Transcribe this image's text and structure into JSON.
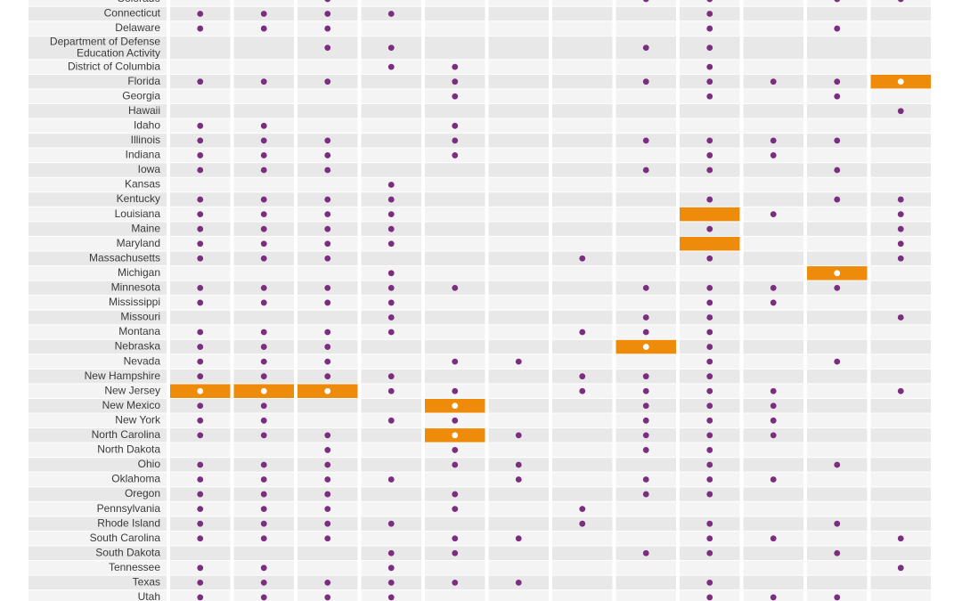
{
  "rows": [
    {
      "label": "Colorado",
      "cells": [
        0,
        0,
        1,
        0,
        0,
        0,
        0,
        1,
        1,
        0,
        1,
        1
      ]
    },
    {
      "label": "Connecticut",
      "cells": [
        1,
        1,
        1,
        1,
        0,
        0,
        0,
        0,
        1,
        0,
        0,
        0
      ]
    },
    {
      "label": "Delaware",
      "cells": [
        1,
        1,
        1,
        0,
        0,
        0,
        0,
        0,
        1,
        0,
        1,
        0
      ]
    },
    {
      "label": [
        "Department of Defense",
        "Education Activity"
      ],
      "cells": [
        0,
        0,
        1,
        1,
        0,
        0,
        0,
        1,
        1,
        0,
        0,
        0
      ]
    },
    {
      "label": "District of Columbia",
      "cells": [
        0,
        0,
        0,
        1,
        1,
        0,
        0,
        0,
        1,
        0,
        0,
        0
      ]
    },
    {
      "label": "Florida",
      "cells": [
        1,
        1,
        1,
        0,
        1,
        0,
        0,
        1,
        1,
        1,
        1,
        2
      ]
    },
    {
      "label": "Georgia",
      "cells": [
        0,
        0,
        0,
        0,
        1,
        0,
        0,
        0,
        1,
        0,
        1,
        0
      ]
    },
    {
      "label": "Hawaii",
      "cells": [
        0,
        0,
        0,
        0,
        0,
        0,
        0,
        0,
        0,
        0,
        0,
        1
      ]
    },
    {
      "label": "Idaho",
      "cells": [
        1,
        1,
        0,
        0,
        1,
        0,
        0,
        0,
        0,
        0,
        0,
        0
      ]
    },
    {
      "label": "Illinois",
      "cells": [
        1,
        1,
        1,
        0,
        1,
        0,
        0,
        1,
        1,
        1,
        1,
        0
      ]
    },
    {
      "label": "Indiana",
      "cells": [
        1,
        1,
        1,
        0,
        1,
        0,
        0,
        0,
        1,
        1,
        0,
        0
      ]
    },
    {
      "label": "Iowa",
      "cells": [
        1,
        1,
        1,
        0,
        0,
        0,
        0,
        1,
        1,
        0,
        1,
        0
      ]
    },
    {
      "label": "Kansas",
      "cells": [
        0,
        0,
        0,
        1,
        0,
        0,
        0,
        0,
        0,
        0,
        0,
        0
      ]
    },
    {
      "label": "Kentucky",
      "cells": [
        1,
        1,
        1,
        1,
        0,
        0,
        0,
        0,
        1,
        0,
        1,
        1
      ]
    },
    {
      "label": "Louisiana",
      "cells": [
        1,
        1,
        1,
        1,
        0,
        0,
        0,
        0,
        3,
        1,
        0,
        1
      ]
    },
    {
      "label": "Maine",
      "cells": [
        1,
        1,
        1,
        1,
        0,
        0,
        0,
        0,
        1,
        0,
        0,
        1
      ]
    },
    {
      "label": "Maryland",
      "cells": [
        1,
        1,
        1,
        1,
        0,
        0,
        0,
        0,
        3,
        0,
        0,
        1
      ]
    },
    {
      "label": "Massachusetts",
      "cells": [
        1,
        1,
        1,
        0,
        0,
        0,
        1,
        0,
        1,
        0,
        0,
        1
      ]
    },
    {
      "label": "Michigan",
      "cells": [
        0,
        0,
        0,
        1,
        0,
        0,
        0,
        0,
        0,
        0,
        2,
        0
      ]
    },
    {
      "label": "Minnesota",
      "cells": [
        1,
        1,
        1,
        1,
        1,
        0,
        0,
        1,
        1,
        1,
        1,
        0
      ]
    },
    {
      "label": "Mississippi",
      "cells": [
        1,
        1,
        1,
        1,
        0,
        0,
        0,
        0,
        1,
        1,
        0,
        0
      ]
    },
    {
      "label": "Missouri",
      "cells": [
        0,
        0,
        0,
        1,
        0,
        0,
        0,
        1,
        1,
        0,
        0,
        1
      ]
    },
    {
      "label": "Montana",
      "cells": [
        1,
        1,
        1,
        1,
        0,
        0,
        1,
        1,
        1,
        0,
        0,
        0
      ]
    },
    {
      "label": "Nebraska",
      "cells": [
        1,
        1,
        1,
        0,
        0,
        0,
        0,
        2,
        1,
        0,
        0,
        0
      ]
    },
    {
      "label": "Nevada",
      "cells": [
        1,
        1,
        1,
        0,
        1,
        1,
        0,
        0,
        1,
        0,
        1,
        0
      ]
    },
    {
      "label": "New Hampshire",
      "cells": [
        1,
        1,
        1,
        1,
        0,
        0,
        1,
        1,
        1,
        0,
        0,
        0
      ]
    },
    {
      "label": "New Jersey",
      "cells": [
        2,
        2,
        2,
        1,
        1,
        0,
        1,
        1,
        1,
        1,
        0,
        1
      ]
    },
    {
      "label": "New Mexico",
      "cells": [
        1,
        1,
        0,
        0,
        2,
        0,
        0,
        1,
        1,
        1,
        0,
        0
      ]
    },
    {
      "label": "New York",
      "cells": [
        1,
        1,
        0,
        1,
        1,
        0,
        0,
        1,
        1,
        1,
        0,
        0
      ]
    },
    {
      "label": "North Carolina",
      "cells": [
        1,
        1,
        1,
        0,
        2,
        1,
        0,
        1,
        1,
        1,
        0,
        0
      ]
    },
    {
      "label": "North Dakota",
      "cells": [
        0,
        0,
        1,
        0,
        1,
        0,
        0,
        1,
        1,
        0,
        0,
        0
      ]
    },
    {
      "label": "Ohio",
      "cells": [
        1,
        1,
        1,
        0,
        1,
        1,
        0,
        0,
        1,
        0,
        1,
        0
      ]
    },
    {
      "label": "Oklahoma",
      "cells": [
        1,
        1,
        1,
        1,
        0,
        1,
        0,
        1,
        1,
        1,
        0,
        0
      ]
    },
    {
      "label": "Oregon",
      "cells": [
        1,
        1,
        1,
        0,
        1,
        0,
        0,
        1,
        1,
        0,
        0,
        0
      ]
    },
    {
      "label": "Pennsylvania",
      "cells": [
        1,
        1,
        1,
        0,
        1,
        0,
        1,
        0,
        0,
        0,
        0,
        0
      ]
    },
    {
      "label": "Rhode Island",
      "cells": [
        1,
        1,
        1,
        1,
        0,
        0,
        1,
        0,
        1,
        0,
        1,
        0
      ]
    },
    {
      "label": "South Carolina",
      "cells": [
        1,
        1,
        1,
        0,
        1,
        1,
        0,
        0,
        1,
        1,
        0,
        1
      ]
    },
    {
      "label": "South Dakota",
      "cells": [
        0,
        0,
        0,
        1,
        1,
        0,
        0,
        1,
        1,
        0,
        1,
        0
      ]
    },
    {
      "label": "Tennessee",
      "cells": [
        1,
        1,
        0,
        1,
        0,
        0,
        0,
        0,
        0,
        0,
        0,
        1
      ]
    },
    {
      "label": "Texas",
      "cells": [
        1,
        1,
        1,
        1,
        1,
        1,
        0,
        0,
        1,
        0,
        0,
        0
      ]
    },
    {
      "label": "Utah",
      "cells": [
        1,
        1,
        1,
        1,
        0,
        0,
        0,
        0,
        1,
        1,
        1,
        0
      ]
    }
  ]
}
